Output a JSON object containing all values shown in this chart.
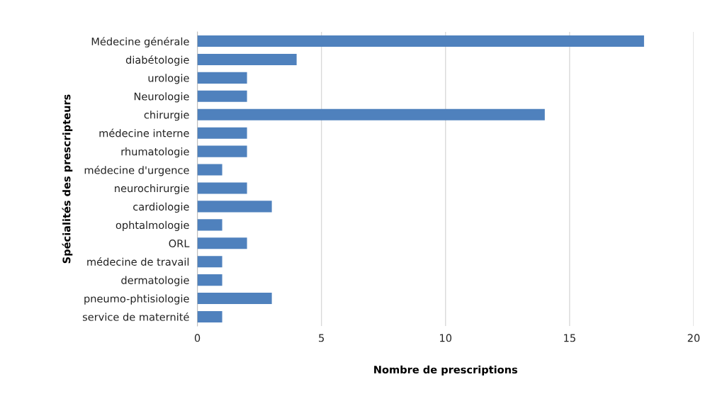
{
  "chart_data": {
    "type": "bar",
    "orientation": "horizontal",
    "xlabel": "Nombre de prescriptions",
    "ylabel": "Spécialités des prescripteurs",
    "categories": [
      "Médecine générale",
      "diabétologie",
      "urologie",
      "Neurologie",
      "chirurgie",
      "médecine interne",
      "rhumatologie",
      "médecine d'urgence",
      "neurochirurgie",
      "cardiologie",
      "ophtalmologie",
      "ORL",
      "médecine de travail",
      "dermatologie",
      "pneumo-phtisiologie",
      "service de maternité"
    ],
    "values": [
      18,
      4,
      2,
      2,
      14,
      2,
      2,
      1,
      2,
      3,
      1,
      2,
      1,
      1,
      3,
      1
    ],
    "color": "#4f81bd",
    "xlim": [
      0,
      20
    ],
    "xticks": [
      0,
      5,
      10,
      15,
      20
    ],
    "grid": "x"
  }
}
